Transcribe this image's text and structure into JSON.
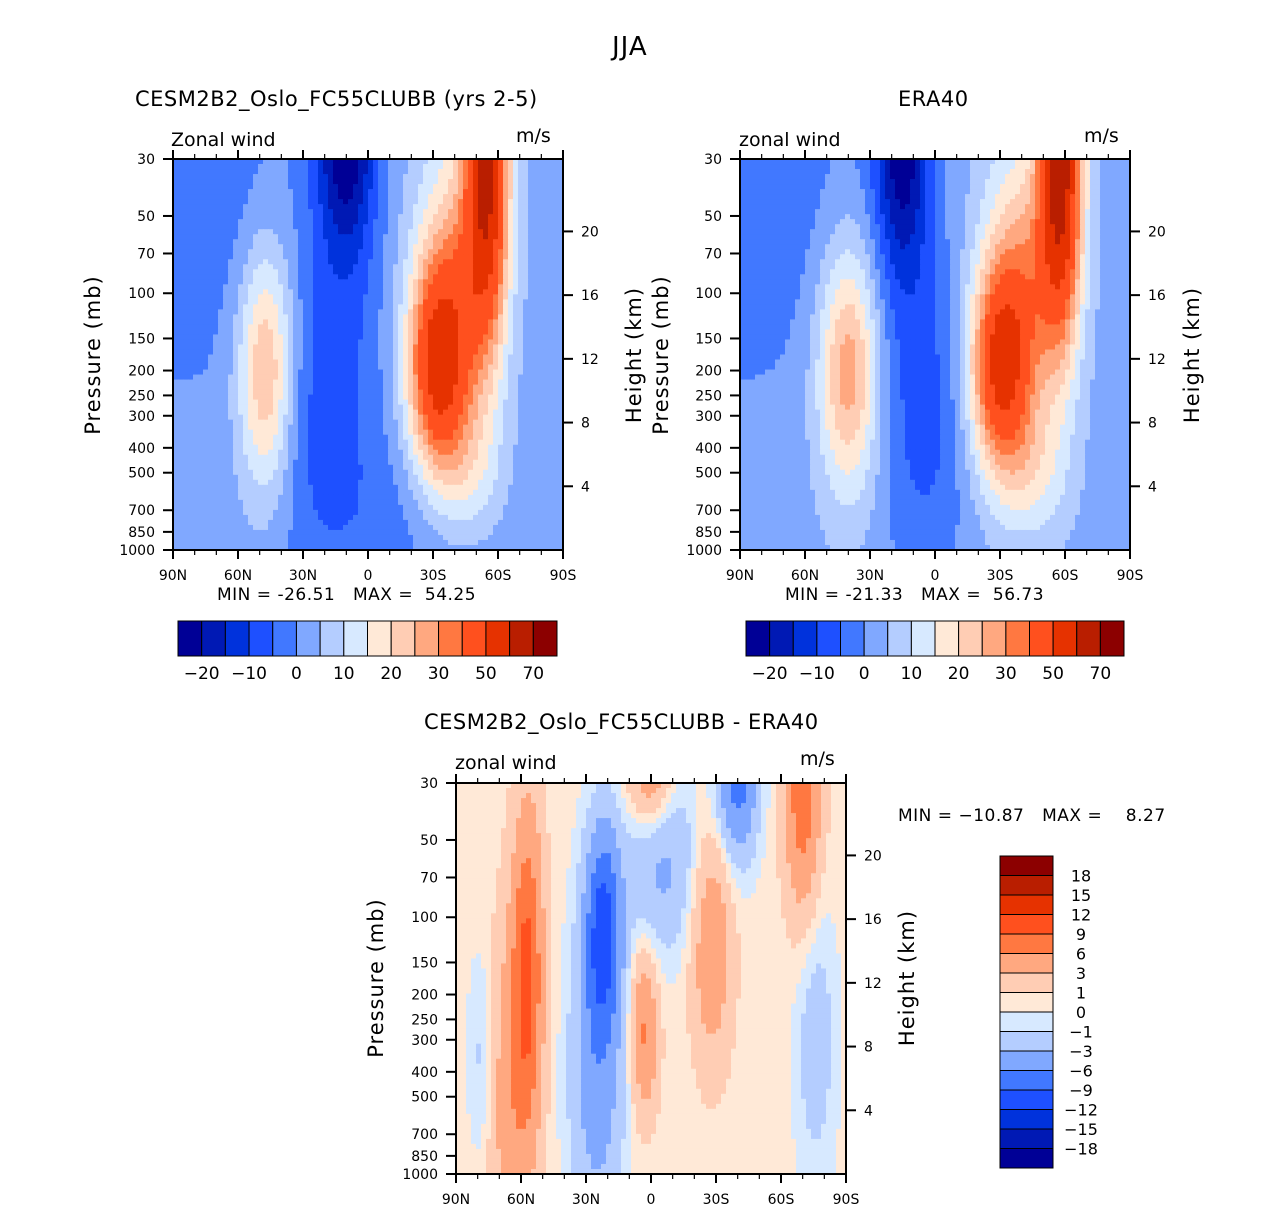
{
  "figure": {
    "title": "JJA"
  },
  "colors": {
    "scale16": [
      "#000096",
      "#0019b4",
      "#0032dc",
      "#1e50ff",
      "#4178ff",
      "#80a8ff",
      "#b4cdff",
      "#d7e9ff",
      "#ffe9d7",
      "#ffcdb4",
      "#ffa880",
      "#ff7841",
      "#ff501e",
      "#e63200",
      "#b91e00",
      "#8c0000"
    ]
  },
  "chart_data": [
    {
      "type": "heatmap",
      "panel": "model",
      "title": "CESM2B2_Oslo_FC55CLUBB (yrs 2-5)",
      "left_string": "Zonal wind",
      "right_string": "m/s",
      "xlabel": "",
      "ylabel": "Pressure (mb)",
      "y2label": "Height (km)",
      "x_ticks": [
        "90N",
        "60N",
        "30N",
        "0",
        "30S",
        "60S",
        "90S"
      ],
      "x_range": [
        90,
        -90
      ],
      "y_ticks": [
        "30",
        "50",
        "70",
        "100",
        "150",
        "200",
        "250",
        "300",
        "400",
        "500",
        "700",
        "850",
        "1000"
      ],
      "y_range_mb": [
        1000,
        30
      ],
      "y2_ticks": [
        "4",
        "8",
        "12",
        "16",
        "20"
      ],
      "min_label": "MIN = -26.51",
      "max_label": "MAX =  54.25",
      "min": -26.51,
      "max": 54.25,
      "colorbar": {
        "orientation": "horizontal",
        "labels": [
          "-20",
          "-10",
          "0",
          "10",
          "20",
          "30",
          "50",
          "70"
        ],
        "levels": [
          -25,
          -20,
          -15,
          -10,
          -5,
          0,
          5,
          10,
          15,
          20,
          25,
          30,
          40,
          50,
          60
        ],
        "n_colors": 16
      },
      "features": [
        {
          "desc": "easterly jet core (dark blue) near 20N upper levels",
          "lat": 15,
          "p": 30,
          "value": -25
        },
        {
          "desc": "westerly maximum near 30S 200mb",
          "lat": -30,
          "p": 200,
          "value": 45
        },
        {
          "desc": "stratospheric westerly near 60S",
          "lat": -60,
          "p": 30,
          "value": 50
        },
        {
          "desc": "weak westerly near 45N 200mb",
          "lat": 45,
          "p": 200,
          "value": 17
        }
      ]
    },
    {
      "type": "heatmap",
      "panel": "obs",
      "title": "ERA40",
      "left_string": "zonal wind",
      "right_string": "m/s",
      "ylabel": "Pressure (mb)",
      "y2label": "Height (km)",
      "x_ticks": [
        "90N",
        "60N",
        "30N",
        "0",
        "30S",
        "60S",
        "90S"
      ],
      "x_range": [
        90,
        -90
      ],
      "y_ticks": [
        "30",
        "50",
        "70",
        "100",
        "150",
        "200",
        "250",
        "300",
        "400",
        "500",
        "700",
        "850",
        "1000"
      ],
      "y_range_mb": [
        1000,
        30
      ],
      "y2_ticks": [
        "4",
        "8",
        "12",
        "16",
        "20"
      ],
      "min_label": "MIN = -21.33",
      "max_label": "MAX =  56.73",
      "min": -21.33,
      "max": 56.73,
      "colorbar": {
        "orientation": "horizontal",
        "labels": [
          "-20",
          "-10",
          "0",
          "10",
          "20",
          "30",
          "50",
          "70"
        ],
        "levels": [
          -25,
          -20,
          -15,
          -10,
          -5,
          0,
          5,
          10,
          15,
          20,
          25,
          30,
          40,
          50,
          60
        ],
        "n_colors": 16
      },
      "features": [
        {
          "desc": "easterly core near 15N upper levels",
          "lat": 15,
          "p": 30,
          "value": -21
        },
        {
          "desc": "westerly maximum near 30S 200mb",
          "lat": -30,
          "p": 200,
          "value": 45
        },
        {
          "desc": "stratospheric westerly near 60S",
          "lat": -60,
          "p": 30,
          "value": 55
        },
        {
          "desc": "weak westerly near 40N 200mb",
          "lat": 40,
          "p": 200,
          "value": 17
        }
      ]
    },
    {
      "type": "heatmap",
      "panel": "difference",
      "title": "CESM2B2_Oslo_FC55CLUBB - ERA40",
      "left_string": "zonal wind",
      "right_string": "m/s",
      "ylabel": "Pressure (mb)",
      "y2label": "Height (km)",
      "x_ticks": [
        "90N",
        "60N",
        "30N",
        "0",
        "30S",
        "60S",
        "90S"
      ],
      "x_range": [
        90,
        -90
      ],
      "y_ticks": [
        "30",
        "50",
        "70",
        "100",
        "150",
        "200",
        "250",
        "300",
        "400",
        "500",
        "700",
        "850",
        "1000"
      ],
      "y_range_mb": [
        1000,
        30
      ],
      "y2_ticks": [
        "4",
        "8",
        "12",
        "16",
        "20"
      ],
      "min_label": "MIN = −10.87",
      "max_label": "MAX =    8.27",
      "min": -10.87,
      "max": 8.27,
      "colorbar": {
        "orientation": "vertical",
        "labels": [
          "18",
          "15",
          "12",
          "9",
          "6",
          "3",
          "1",
          "0",
          "-1",
          "-3",
          "-6",
          "-9",
          "-12",
          "-15",
          "-18"
        ],
        "levels": [
          -18,
          -15,
          -12,
          -9,
          -6,
          -3,
          -1,
          0,
          1,
          3,
          6,
          9,
          12,
          15,
          18
        ],
        "n_colors": 16
      },
      "features": [
        {
          "desc": "positive band near 60N",
          "lat": 57,
          "p": 150,
          "value": 8
        },
        {
          "desc": "negative band near 25N upper",
          "lat": 22,
          "p": 100,
          "value": -10
        },
        {
          "desc": "positive upper near 0",
          "lat": 0,
          "p": 30,
          "value": 5
        },
        {
          "desc": "positive near 5N mid",
          "lat": 3,
          "p": 250,
          "value": 5
        },
        {
          "desc": "positive near 30S",
          "lat": -28,
          "p": 120,
          "value": 4
        },
        {
          "desc": "negative upper near 40S",
          "lat": -40,
          "p": 30,
          "value": -7
        },
        {
          "desc": "positive upper near 70S",
          "lat": -70,
          "p": 30,
          "value": 7
        },
        {
          "desc": "negative near 75S mid",
          "lat": -75,
          "p": 300,
          "value": -2
        }
      ]
    }
  ]
}
